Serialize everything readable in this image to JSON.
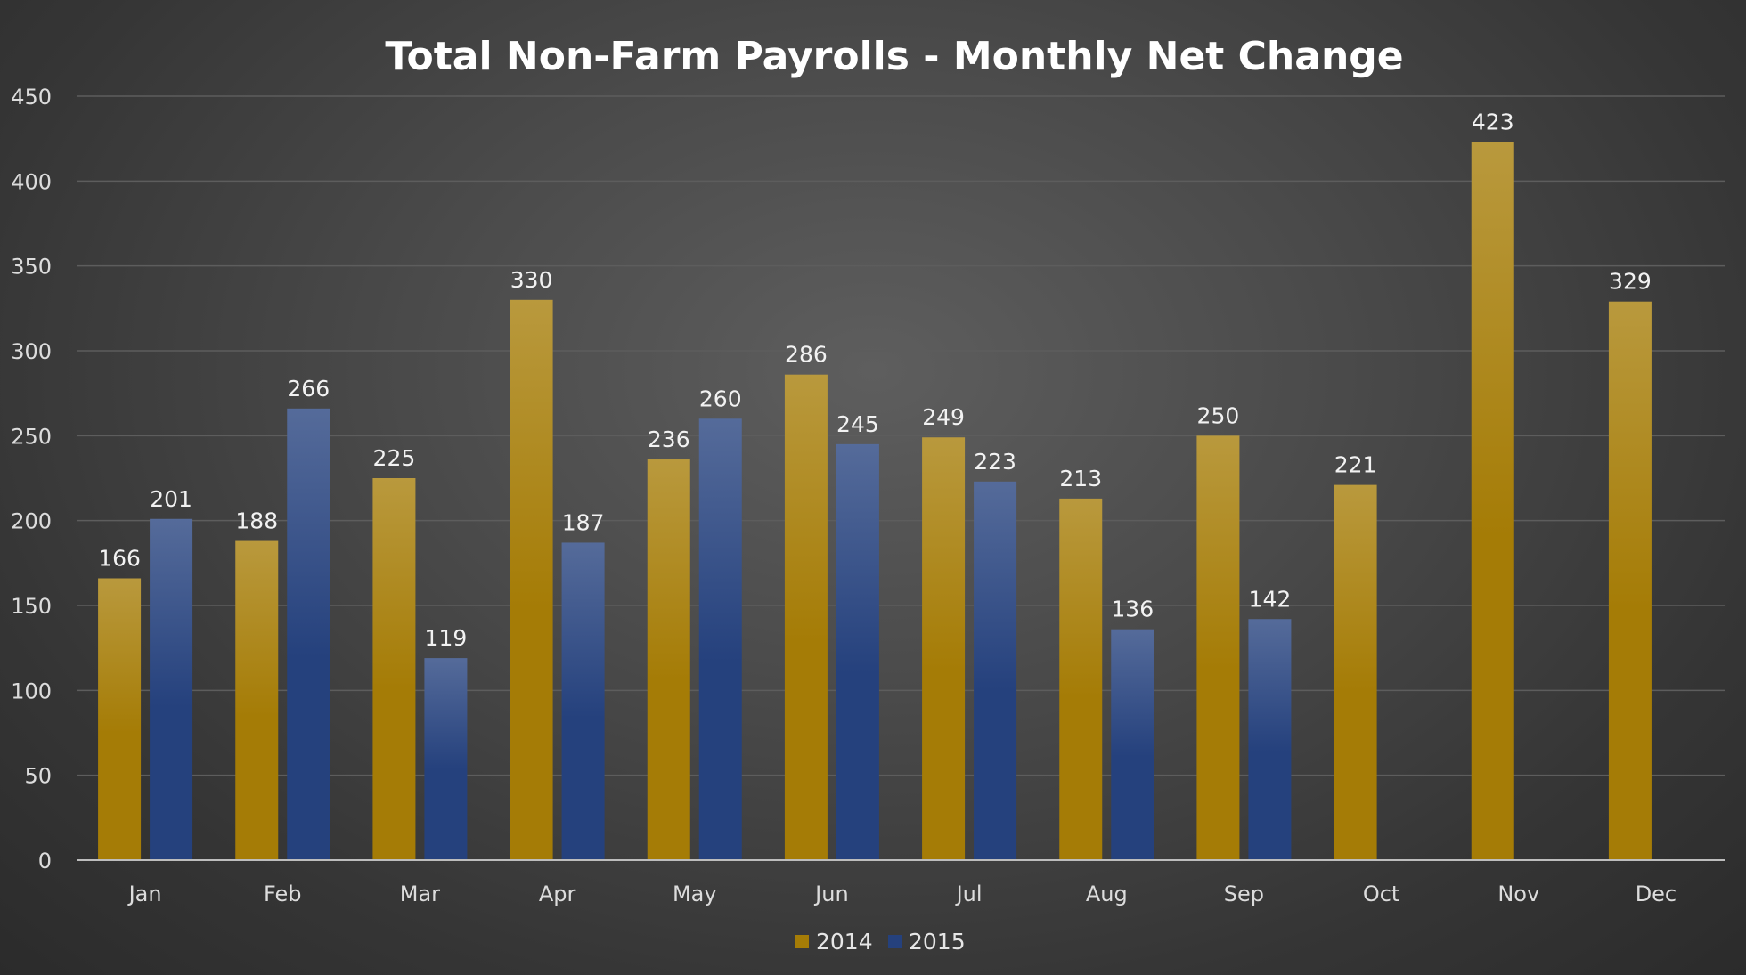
{
  "chart_data": {
    "type": "bar",
    "title": "Total Non-Farm Payrolls - Monthly Net Change",
    "xlabel": "",
    "ylabel": "",
    "categories": [
      "Jan",
      "Feb",
      "Mar",
      "Apr",
      "May",
      "Jun",
      "Jul",
      "Aug",
      "Sep",
      "Oct",
      "Nov",
      "Dec"
    ],
    "series": [
      {
        "name": "2014",
        "color": "#a57c06",
        "values": [
          166,
          188,
          225,
          330,
          236,
          286,
          249,
          213,
          250,
          221,
          423,
          329
        ]
      },
      {
        "name": "2015",
        "color": "#25417d",
        "values": [
          201,
          266,
          119,
          187,
          260,
          245,
          223,
          136,
          142,
          null,
          null,
          null
        ]
      }
    ],
    "ylim": [
      0,
      450
    ],
    "yticks": [
      0,
      50,
      100,
      150,
      200,
      250,
      300,
      350,
      400,
      450
    ],
    "grid": true,
    "data_labels": true,
    "legend_position": "bottom"
  }
}
